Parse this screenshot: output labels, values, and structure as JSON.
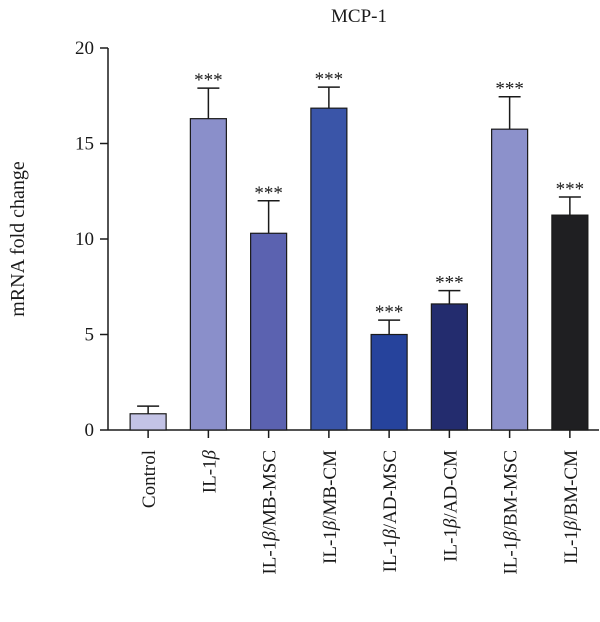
{
  "chart_data": {
    "type": "bar",
    "title": "MCP-1",
    "ylabel": "mRNA fold change",
    "xlabel": "",
    "ylim": [
      0,
      20
    ],
    "yticks": [
      0,
      5,
      10,
      15,
      20
    ],
    "grid": false,
    "categories": [
      {
        "prefix": "Control",
        "beta": false,
        "suffix": ""
      },
      {
        "prefix": "IL-1",
        "beta": true,
        "suffix": ""
      },
      {
        "prefix": "IL-1",
        "beta": true,
        "suffix": "/MB-MSC"
      },
      {
        "prefix": "IL-1",
        "beta": true,
        "suffix": "/MB-CM"
      },
      {
        "prefix": "IL-1",
        "beta": true,
        "suffix": "/AD-MSC"
      },
      {
        "prefix": "IL-1",
        "beta": true,
        "suffix": "/AD-CM"
      },
      {
        "prefix": "IL-1",
        "beta": true,
        "suffix": "/BM-MSC"
      },
      {
        "prefix": "IL-1",
        "beta": true,
        "suffix": "/BM-CM"
      }
    ],
    "beta_symbol": "β",
    "values": [
      0.85,
      16.3,
      10.3,
      16.85,
      5.0,
      6.6,
      15.75,
      11.25
    ],
    "errors": [
      0.4,
      1.6,
      1.7,
      1.1,
      0.75,
      0.7,
      1.7,
      0.95
    ],
    "significance": [
      "",
      "***",
      "***",
      "***",
      "***",
      "***",
      "***",
      "***"
    ],
    "colors": [
      "#c3c3e6",
      "#8a8fca",
      "#5b62b0",
      "#3a55a8",
      "#26439c",
      "#232c6e",
      "#8c91cb",
      "#1f1f22"
    ]
  }
}
